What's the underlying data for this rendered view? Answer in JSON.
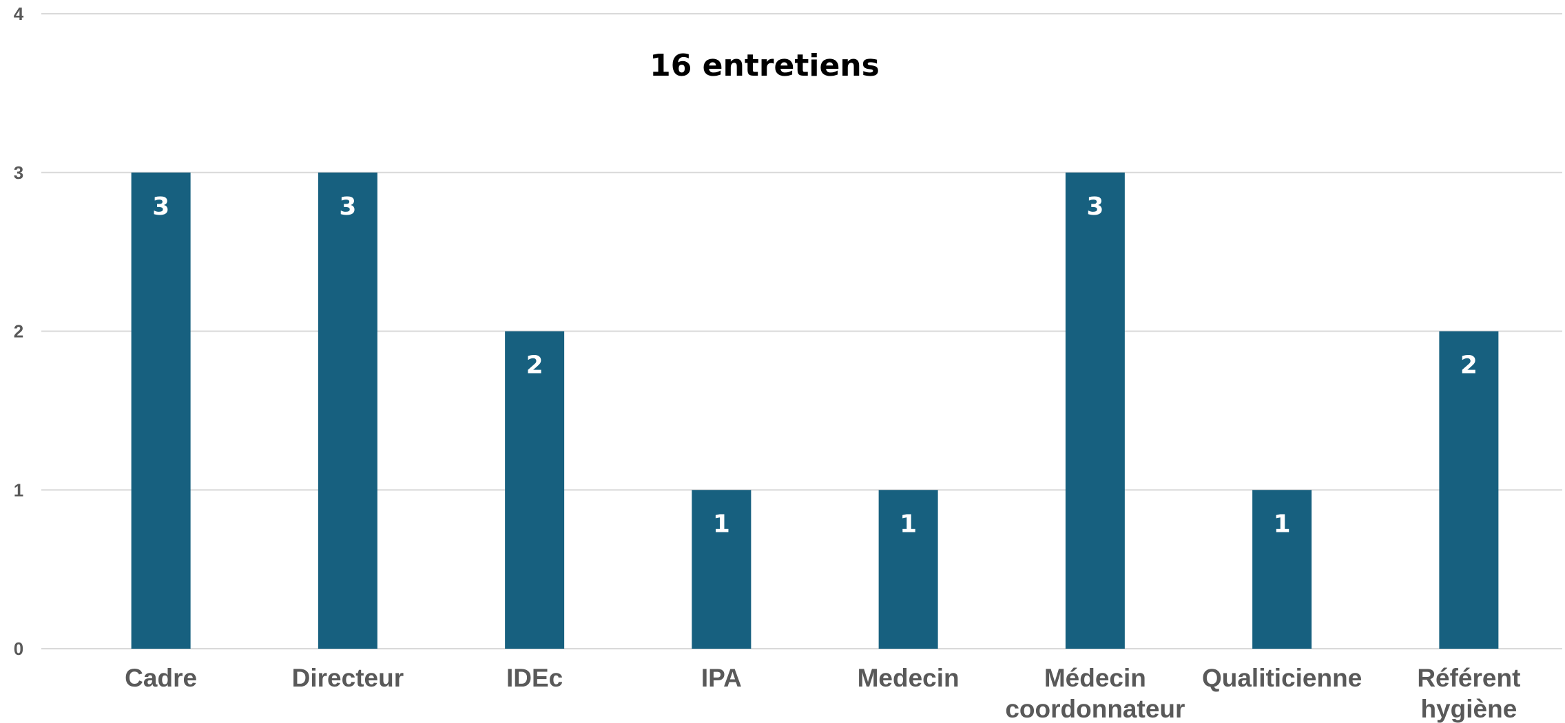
{
  "chart_data": {
    "type": "bar",
    "title": "16 entretiens",
    "xlabel": "",
    "ylabel": "",
    "ylim": [
      0,
      4
    ],
    "yticks": [
      0,
      1,
      2,
      3,
      4
    ],
    "grid": true,
    "legend": "none",
    "bar_color": "#17607f",
    "categories": [
      [
        "Cadre"
      ],
      [
        "Directeur"
      ],
      [
        "IDEc"
      ],
      [
        "IPA"
      ],
      [
        "Medecin"
      ],
      [
        "Médecin",
        "coordonnateur"
      ],
      [
        "Qualiticienne"
      ],
      [
        "Référent",
        "hygiène"
      ]
    ],
    "values": [
      3,
      3,
      2,
      1,
      1,
      3,
      1,
      2
    ],
    "data_labels": [
      "3",
      "3",
      "2",
      "1",
      "1",
      "3",
      "1",
      "2"
    ]
  }
}
